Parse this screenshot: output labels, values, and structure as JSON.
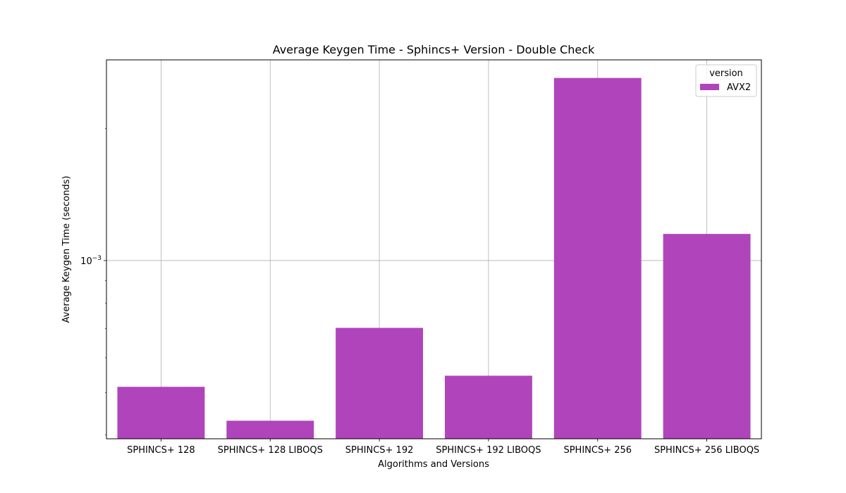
{
  "chart_data": {
    "type": "bar",
    "title": "Average Keygen Time - Sphincs+ Version - Double Check",
    "xlabel": "Algorithms and Versions",
    "ylabel": "Average Keygen Time (seconds)",
    "y_scale": "log",
    "ylim": [
      0.000392,
      0.00287
    ],
    "y_tick_labels": [
      {
        "value": 0.001,
        "text": "10−3"
      }
    ],
    "categories": [
      "SPHINCS+ 128",
      "SPHINCS+ 128 LIBOQS",
      "SPHINCS+ 192",
      "SPHINCS+ 192 LIBOQS",
      "SPHINCS+ 256",
      "SPHINCS+ 256 LIBOQS"
    ],
    "series": [
      {
        "name": "AVX2",
        "color": "#b044bb",
        "values": [
          0.000515,
          0.000431,
          0.000702,
          0.000546,
          0.00261,
          0.00115
        ]
      }
    ],
    "legend": {
      "title": "version",
      "placement": "top-right"
    },
    "grid": true
  }
}
